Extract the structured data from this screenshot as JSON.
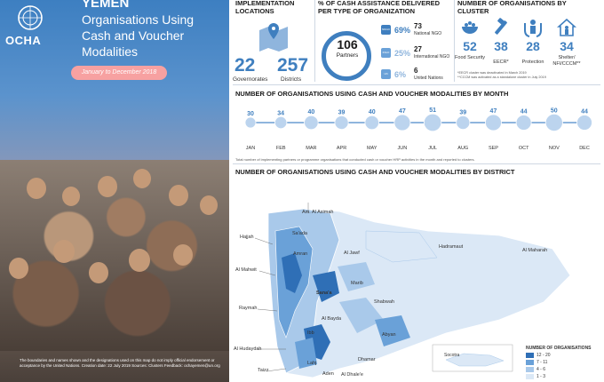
{
  "header": {
    "brand": "OCHA",
    "country": "YEMEN",
    "title": "Organisations Using Cash and Voucher Modalities",
    "period": "January to December 2018",
    "disclaimer": "The boundaries and names shown and the designations used on this map do not imply official endorsement or acceptance by the United Nations. Creation date: 22 July 2019   Sources: Clusters   Feedback: ochayemen@un.org"
  },
  "implementation": {
    "title": "IMPLEMENTATION LOCATIONS",
    "governorates_value": "22",
    "governorates_label": "Governorates",
    "districts_value": "257",
    "districts_label": "Districts"
  },
  "cash_by_org_type": {
    "title": "% OF CASH ASSISTANCE DELIVERED PER TYPE OF ORGANIZATION",
    "partners_value": "106",
    "partners_label": "Partners",
    "rows": [
      {
        "badge": "NNGO",
        "pct": "69%",
        "count": "73",
        "label": "National NGO",
        "color": "#3f7fbf"
      },
      {
        "badge": "INGO",
        "pct": "25%",
        "count": "27",
        "label": "International NGO",
        "color": "#8fb5dd"
      },
      {
        "badge": "UN",
        "pct": "6%",
        "count": "6",
        "label": "United Nations",
        "color": "#8fb5dd"
      }
    ]
  },
  "clusters": {
    "title": "NUMBER OF ORGANISATIONS BY CLUSTER",
    "items": [
      {
        "value": "52",
        "label": "Food Security",
        "icon": "food-bowl-icon"
      },
      {
        "value": "38",
        "label": "EECR*",
        "icon": "tools-icon"
      },
      {
        "value": "28",
        "label": "Protection",
        "icon": "protection-icon"
      },
      {
        "value": "34",
        "label": "Shelter/ NFI/CCCM**",
        "icon": "shelter-icon"
      }
    ],
    "footnote1": "*EECR cluster was deactivated in March 2019",
    "footnote2": "**CCCM was activated as a standalone cluster in July 2019"
  },
  "monthly_note": "Total number of implementing partners or programme organisations that conducted cash or voucher HRP activities in the month and reported to clusters.",
  "chart_data": {
    "type": "line",
    "title": "NUMBER OF ORGANISATIONS USING CASH AND VOUCHER MODALITIES BY MONTH",
    "categories": [
      "JAN",
      "FEB",
      "MAR",
      "APR",
      "MAY",
      "JUN",
      "JUL",
      "AUG",
      "SEP",
      "OCT",
      "NOV",
      "DEC"
    ],
    "values": [
      30,
      34,
      40,
      39,
      40,
      47,
      51,
      39,
      47,
      44,
      50,
      44
    ],
    "ylim": [
      0,
      60
    ],
    "grid": false,
    "marker_color": "#bcd4ee",
    "line_color": "#8fb5dd"
  },
  "district_map": {
    "title": "NUMBER OF ORGANISATIONS USING CASH AND VOUCHER MODALITIES BY DISTRICT",
    "labels": [
      "Am. Al Asimah",
      "Sa'ada",
      "Hajjah",
      "Amran",
      "Al Jawf",
      "Hadramaut",
      "Al Maharah",
      "Al Mahwit",
      "Sana'a",
      "Marib",
      "Raymah",
      "Shabwah",
      "Al Bayda",
      "Dhamar",
      "Ibb",
      "Abyan",
      "Al Hudaydah",
      "Taizz",
      "Lahj",
      "Aden",
      "Al Dhale'e",
      "Socotra"
    ],
    "legend_title": "NUMBER OF ORGANISATIONS",
    "legend": [
      {
        "range": "12 - 20",
        "color": "#2f6fb6"
      },
      {
        "range": "7 - 11",
        "color": "#6aa1d8"
      },
      {
        "range": "4 - 6",
        "color": "#a9c9ea"
      },
      {
        "range": "1 - 3",
        "color": "#dbe8f6"
      }
    ]
  }
}
